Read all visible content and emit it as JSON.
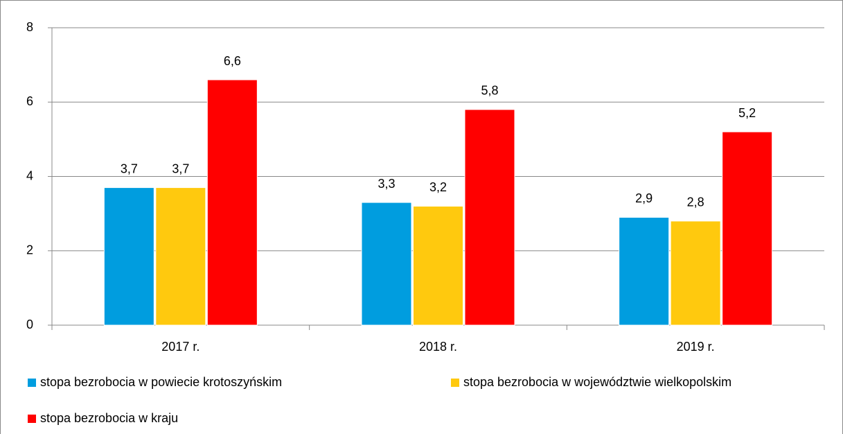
{
  "chart_data": {
    "type": "bar",
    "categories": [
      "2017 r.",
      "2018 r.",
      "2019 r."
    ],
    "series": [
      {
        "name": "stopa bezrobocia w powiecie krotoszyńskim",
        "color": "#009ddf",
        "values": [
          3.7,
          3.3,
          2.9
        ],
        "value_labels": [
          "3,7",
          "3,3",
          "2,9"
        ]
      },
      {
        "name": "stopa bezrobocia w województwie wielkopolskim",
        "color": "#ffc90e",
        "values": [
          3.7,
          3.2,
          2.8
        ],
        "value_labels": [
          "3,7",
          "3,2",
          "2,8"
        ]
      },
      {
        "name": "stopa bezrobocia w kraju",
        "color": "#ff0000",
        "values": [
          6.6,
          5.8,
          5.2
        ],
        "value_labels": [
          "6,6",
          "5,8",
          "5,2"
        ]
      }
    ],
    "ylim": [
      0,
      8
    ],
    "yticks": [
      0,
      2,
      4,
      6,
      8
    ],
    "grid": true,
    "legend": "bottom"
  }
}
